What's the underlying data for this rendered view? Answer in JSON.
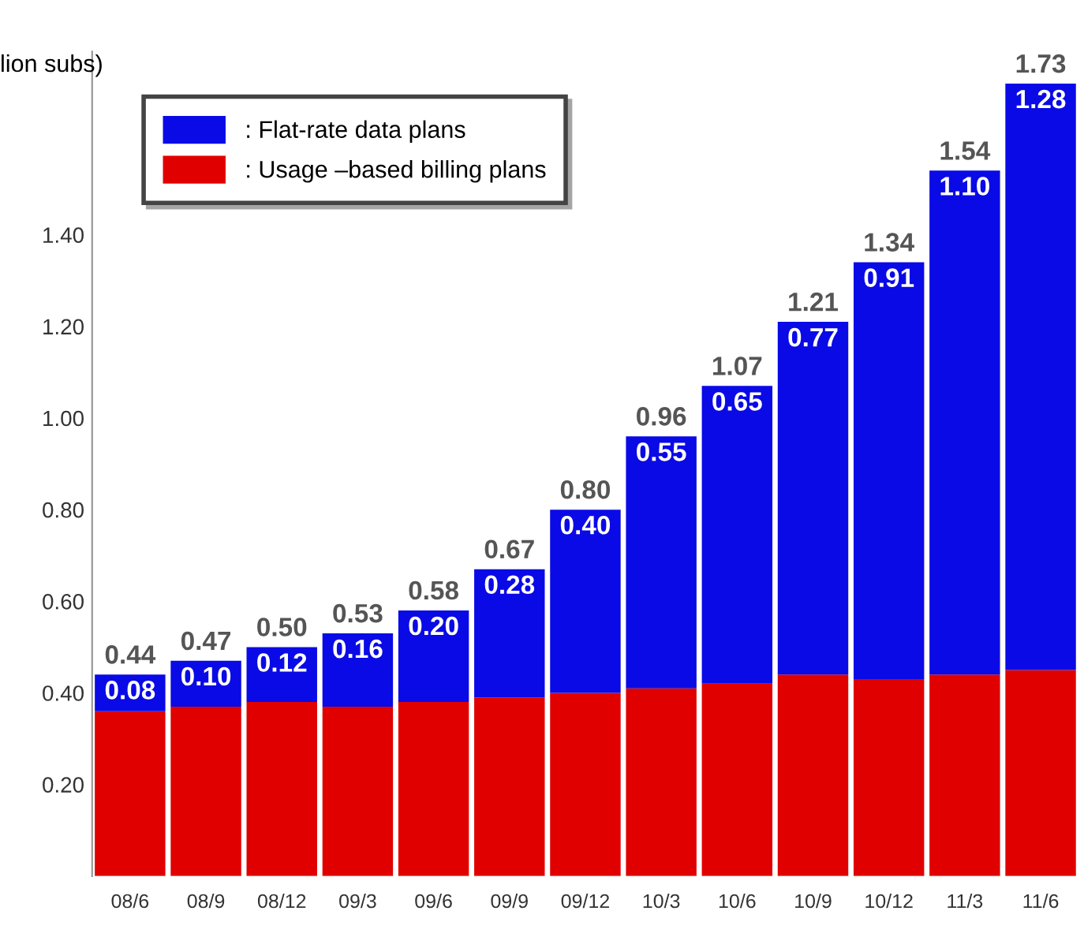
{
  "chart_data": {
    "type": "bar",
    "stacked": true,
    "ylabel": "lion subs)",
    "categories": [
      "08/6",
      "08/9",
      "08/12",
      "09/3",
      "09/6",
      "09/9",
      "09/12",
      "10/3",
      "10/6",
      "10/9",
      "10/12",
      "11/3",
      "11/6"
    ],
    "series": [
      {
        "name": ": Usage –based billing plans",
        "color": "#e00000",
        "values": [
          0.36,
          0.37,
          0.38,
          0.37,
          0.38,
          0.39,
          0.4,
          0.41,
          0.42,
          0.44,
          0.43,
          0.44,
          0.45
        ]
      },
      {
        "name": ": Flat-rate data plans",
        "color": "#0a0ae6",
        "values": [
          0.08,
          0.1,
          0.12,
          0.16,
          0.2,
          0.28,
          0.4,
          0.55,
          0.65,
          0.77,
          0.91,
          1.1,
          1.28
        ],
        "value_labels": [
          "0.08",
          "0.10",
          "0.12",
          "0.16",
          "0.20",
          "0.28",
          "0.40",
          "0.55",
          "0.65",
          "0.77",
          "0.91",
          "1.10",
          "1.28"
        ]
      }
    ],
    "totals": [
      "0.44",
      "0.47",
      "0.50",
      "0.53",
      "0.58",
      "0.67",
      "0.80",
      "0.96",
      "1.07",
      "1.21",
      "1.34",
      "1.54",
      "1.73"
    ],
    "ylim": [
      0,
      1.8
    ],
    "yticks": [
      "0.20",
      "0.40",
      "0.60",
      "0.80",
      "1.00",
      "1.20",
      "1.40"
    ],
    "grid": false,
    "legend": "top left"
  }
}
